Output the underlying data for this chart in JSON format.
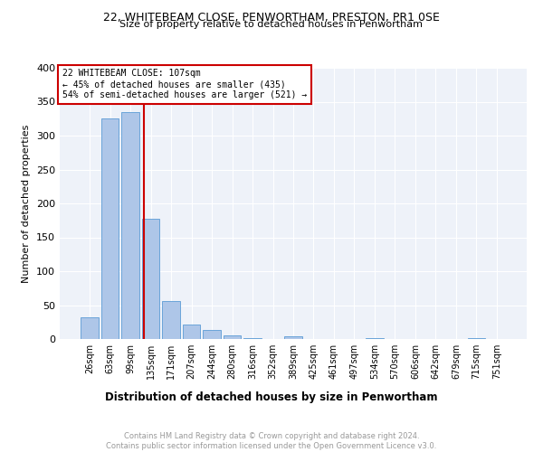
{
  "title1": "22, WHITEBEAM CLOSE, PENWORTHAM, PRESTON, PR1 0SE",
  "title2": "Size of property relative to detached houses in Penwortham",
  "xlabel": "Distribution of detached houses by size in Penwortham",
  "ylabel": "Number of detached properties",
  "footnote": "Contains HM Land Registry data © Crown copyright and database right 2024.\nContains public sector information licensed under the Open Government Licence v3.0.",
  "bar_labels": [
    "26sqm",
    "63sqm",
    "99sqm",
    "135sqm",
    "171sqm",
    "207sqm",
    "244sqm",
    "280sqm",
    "316sqm",
    "352sqm",
    "389sqm",
    "425sqm",
    "461sqm",
    "497sqm",
    "534sqm",
    "570sqm",
    "606sqm",
    "642sqm",
    "679sqm",
    "715sqm",
    "751sqm"
  ],
  "bar_values": [
    32,
    325,
    335,
    178,
    56,
    22,
    13,
    5,
    2,
    0,
    4,
    0,
    0,
    0,
    2,
    0,
    0,
    0,
    0,
    2,
    0
  ],
  "bar_color": "#aec6e8",
  "bar_edge_color": "#5b9bd5",
  "property_label": "22 WHITEBEAM CLOSE: 107sqm",
  "annotation_line1": "← 45% of detached houses are smaller (435)",
  "annotation_line2": "54% of semi-detached houses are larger (521) →",
  "vline_color": "#cc0000",
  "vline_x": 2.67,
  "annotation_box_color": "#cc0000",
  "ylim": [
    0,
    400
  ],
  "yticks": [
    0,
    50,
    100,
    150,
    200,
    250,
    300,
    350,
    400
  ],
  "background_color": "#eef2f9",
  "grid_color": "#ffffff"
}
